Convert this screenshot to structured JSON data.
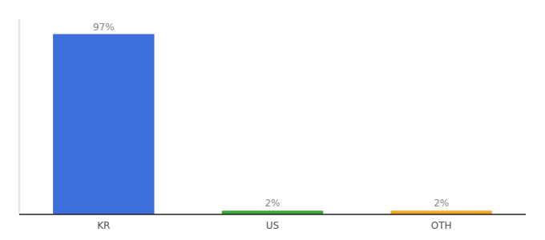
{
  "chart_data": {
    "type": "bar",
    "categories": [
      "KR",
      "US",
      "OTH"
    ],
    "values": [
      97,
      2,
      2
    ],
    "value_labels": [
      "97%",
      "2%",
      "2%"
    ],
    "colors": [
      "#3d6fdb",
      "#3aaa35",
      "#f5a623"
    ],
    "ylim": [
      0,
      105
    ],
    "data_labels": true,
    "tick_labels": "x",
    "grid": false
  }
}
